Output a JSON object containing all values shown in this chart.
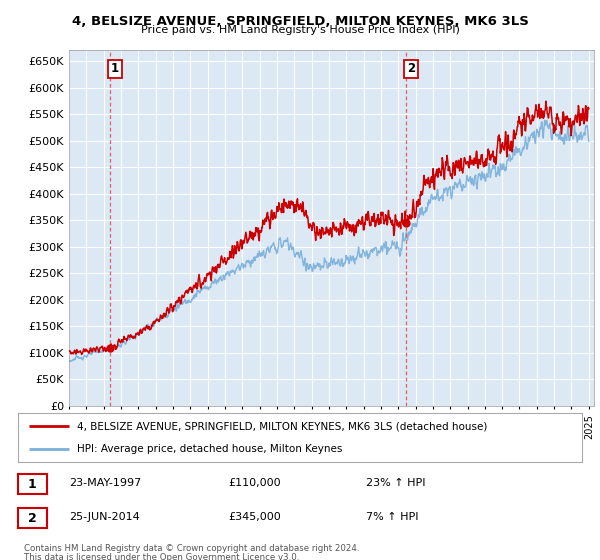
{
  "title": "4, BELSIZE AVENUE, SPRINGFIELD, MILTON KEYNES, MK6 3LS",
  "subtitle": "Price paid vs. HM Land Registry's House Price Index (HPI)",
  "ylim": [
    0,
    670000
  ],
  "yticks": [
    0,
    50000,
    100000,
    150000,
    200000,
    250000,
    300000,
    350000,
    400000,
    450000,
    500000,
    550000,
    600000,
    650000
  ],
  "xlim_start": 1995.0,
  "xlim_end": 2025.3,
  "bg_color": "#dce9f5",
  "grid_color": "#ffffff",
  "red_line_color": "#cc0000",
  "blue_line_color": "#7aafda",
  "sale1_year": 1997.38,
  "sale1_price": 110000,
  "sale1_label": "1",
  "sale1_date": "23-MAY-1997",
  "sale1_hpi": "23% ↑ HPI",
  "sale2_year": 2014.47,
  "sale2_price": 345000,
  "sale2_label": "2",
  "sale2_date": "25-JUN-2014",
  "sale2_hpi": "7% ↑ HPI",
  "legend_red": "4, BELSIZE AVENUE, SPRINGFIELD, MILTON KEYNES, MK6 3LS (detached house)",
  "legend_blue": "HPI: Average price, detached house, Milton Keynes",
  "footer1": "Contains HM Land Registry data © Crown copyright and database right 2024.",
  "footer2": "This data is licensed under the Open Government Licence v3.0."
}
